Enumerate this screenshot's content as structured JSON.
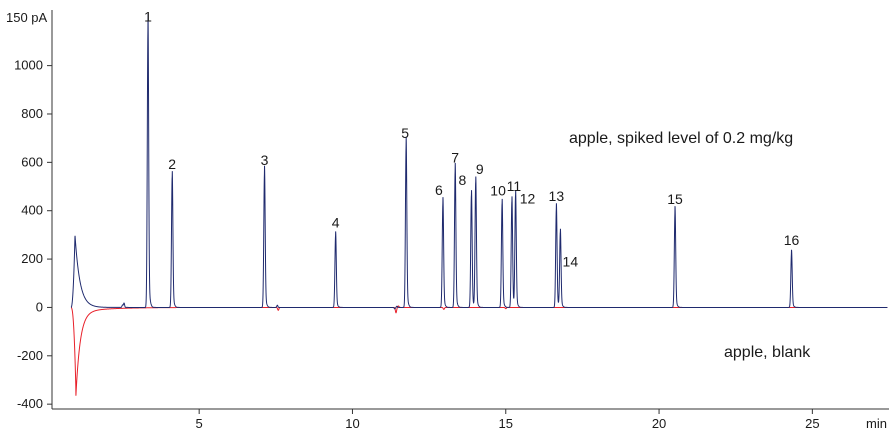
{
  "chart_data": {
    "type": "line",
    "title": "",
    "y_unit_label": "150 pA",
    "x_unit_label": "min",
    "xlim": [
      0.2,
      27.5
    ],
    "ylim": [
      -420,
      1230
    ],
    "x_ticks": [
      5,
      10,
      15,
      20,
      25
    ],
    "y_ticks": [
      -400,
      -200,
      0,
      200,
      400,
      600,
      800,
      1000
    ],
    "grid": false,
    "colors": {
      "spiked": "#1f2a6e",
      "blank": "#e8202a",
      "axis": "#333333"
    },
    "solvent_peak": {
      "spiked_top": 300,
      "blank_bottom": -345
    },
    "peaks": [
      {
        "label": "1",
        "x": 3.33,
        "y": 1150
      },
      {
        "label": "2",
        "x": 4.12,
        "y": 540
      },
      {
        "label": "3",
        "x": 7.13,
        "y": 555
      },
      {
        "label": "4",
        "x": 9.45,
        "y": 298
      },
      {
        "label": "5",
        "x": 11.75,
        "y": 668
      },
      {
        "label": "6",
        "x": 12.95,
        "y": 432
      },
      {
        "label": "7",
        "x": 13.35,
        "y": 566
      },
      {
        "label": "8",
        "x": 13.88,
        "y": 465
      },
      {
        "label": "9",
        "x": 14.02,
        "y": 518
      },
      {
        "label": "10",
        "x": 14.88,
        "y": 430
      },
      {
        "label": "11",
        "x": 15.2,
        "y": 440
      },
      {
        "label": "12",
        "x": 15.32,
        "y": 462
      },
      {
        "label": "13",
        "x": 16.65,
        "y": 408
      },
      {
        "label": "14",
        "x": 16.78,
        "y": 310
      },
      {
        "label": "15",
        "x": 20.52,
        "y": 395
      },
      {
        "label": "16",
        "x": 24.32,
        "y": 225
      }
    ],
    "annotations": {
      "spiked": "apple, spiked level of 0.2 mg/kg",
      "blank": "apple, blank"
    }
  }
}
